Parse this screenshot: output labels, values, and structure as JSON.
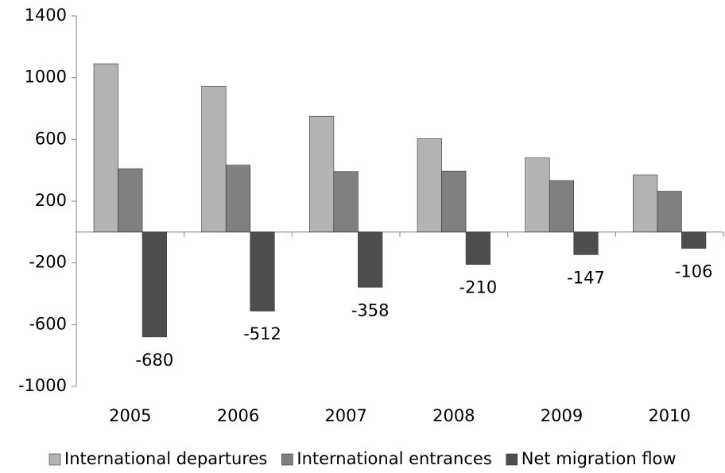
{
  "chart_data": {
    "type": "bar",
    "categories": [
      "2005",
      "2006",
      "2007",
      "2008",
      "2009",
      "2010"
    ],
    "series": [
      {
        "name": "International departures",
        "color": "#b3b3b3",
        "values": [
          1090,
          945,
          750,
          605,
          480,
          370
        ]
      },
      {
        "name": "International entrances",
        "color": "#808080",
        "values": [
          410,
          433,
          392,
          395,
          333,
          264
        ]
      },
      {
        "name": "Net migration flow",
        "color": "#4d4d4d",
        "values": [
          -680,
          -512,
          -358,
          -210,
          -147,
          -106
        ],
        "data_labels": true
      }
    ],
    "ylim": [
      -1000,
      1400
    ],
    "yticks": [
      -1000,
      -600,
      -200,
      200,
      600,
      1000,
      1400
    ],
    "grid": false,
    "legend": "bottom"
  }
}
